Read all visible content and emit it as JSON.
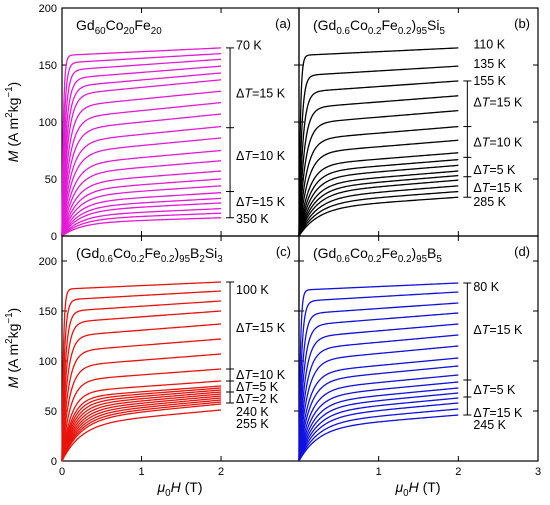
{
  "chart_data": [
    {
      "type": "line",
      "panel": "(a)",
      "title_parts": [
        [
          "Gd",
          "n"
        ],
        [
          "60",
          "sub"
        ],
        [
          "Co",
          "n"
        ],
        [
          "20",
          "sub"
        ],
        [
          "Fe",
          "n"
        ],
        [
          "20",
          "sub"
        ]
      ],
      "xlim": [
        0,
        3
      ],
      "ylim": [
        0,
        200
      ],
      "x_ticks": [
        0,
        1,
        2,
        3
      ],
      "y_ticks": [
        0,
        50,
        100,
        150,
        200
      ],
      "x_tick_labels": [],
      "y_tick_labels": [
        "0",
        "50",
        "100",
        "150",
        "200"
      ],
      "color": "#e31ad6",
      "curve_field_max": 2,
      "series_m_at_2T": [
        165,
        160,
        155,
        149,
        143,
        137,
        127,
        117,
        107,
        96,
        86,
        75,
        66,
        57,
        50,
        44,
        38,
        33,
        29,
        24,
        20,
        16
      ],
      "annotations": [
        "70 K",
        "ΔT=15 K",
        "ΔT=10 K",
        "ΔT=15 K",
        "350 K"
      ],
      "bracket": {
        "top": 165,
        "bottom": 16,
        "ticks": [
          95,
          39
        ]
      },
      "annotation_y": [
        167,
        125,
        70,
        30,
        15
      ]
    },
    {
      "type": "line",
      "panel": "(b)",
      "title_parts": [
        [
          "(Gd",
          "n"
        ],
        [
          "0.6",
          "sub"
        ],
        [
          "Co",
          "n"
        ],
        [
          "0.2",
          "sub"
        ],
        [
          "Fe",
          "n"
        ],
        [
          "0.2",
          "sub"
        ],
        [
          ")",
          "n"
        ],
        [
          "95",
          "sub"
        ],
        [
          "Si",
          "n"
        ],
        [
          "5",
          "sub"
        ]
      ],
      "xlim": [
        0,
        3
      ],
      "ylim": [
        0,
        200
      ],
      "x_ticks": [
        0,
        1,
        2,
        3
      ],
      "y_ticks": [
        0,
        50,
        100,
        150,
        200
      ],
      "x_tick_labels": [],
      "y_tick_labels": [],
      "color": "#000000",
      "curve_field_max": 2,
      "series_m_at_2T": [
        165,
        149,
        136,
        123,
        110,
        96,
        84,
        73,
        67,
        62,
        57,
        53,
        49,
        44,
        39,
        34
      ],
      "annotations": [
        "110 K",
        "135 K",
        "155 K",
        "ΔT=15 K",
        "ΔT=10 K",
        "ΔT=5 K",
        "ΔT=15 K",
        "285 K"
      ],
      "bracket": {
        "top": 136,
        "bottom": 34,
        "ticks": [
          96,
          69,
          52
        ]
      },
      "annotation_y": [
        168,
        151,
        136,
        117,
        82,
        58,
        42,
        30
      ]
    },
    {
      "type": "line",
      "panel": "(c)",
      "title_parts": [
        [
          "(Gd",
          "n"
        ],
        [
          "0.6",
          "sub"
        ],
        [
          "Co",
          "n"
        ],
        [
          "0.2",
          "sub"
        ],
        [
          "Fe",
          "n"
        ],
        [
          "0.2",
          "sub"
        ],
        [
          ")",
          "n"
        ],
        [
          "95",
          "sub"
        ],
        [
          "B",
          "n"
        ],
        [
          "2",
          "sub"
        ],
        [
          "Si",
          "n"
        ],
        [
          "3",
          "sub"
        ]
      ],
      "xlim": [
        0,
        3
      ],
      "ylim": [
        0,
        225
      ],
      "x_ticks": [
        0,
        1,
        2,
        3
      ],
      "y_ticks": [
        0,
        50,
        100,
        150,
        200
      ],
      "x_tick_labels": [
        "0",
        "1",
        "2",
        ""
      ],
      "y_tick_labels": [
        "0",
        "50",
        "100",
        "150",
        "200"
      ],
      "color": "#e8140c",
      "curve_field_max": 2,
      "series_m_at_2T": [
        179,
        170,
        160,
        150,
        137,
        122,
        107,
        92,
        80,
        75,
        73,
        71,
        69,
        67,
        65,
        63,
        61,
        59,
        57,
        51
      ],
      "annotations": [
        "100 K",
        "ΔT=15 K",
        "ΔT=10 K",
        "ΔT=5 K",
        "ΔT=2 K",
        "240 K",
        "255 K"
      ],
      "bracket": {
        "top": 179,
        "bottom": 58,
        "ticks": [
          92,
          80,
          69
        ]
      },
      "annotation_y": [
        171,
        133,
        86,
        74,
        62,
        49,
        37
      ]
    },
    {
      "type": "line",
      "panel": "(d)",
      "title_parts": [
        [
          "(Gd",
          "n"
        ],
        [
          "0.6",
          "sub"
        ],
        [
          "Co",
          "n"
        ],
        [
          "0.2",
          "sub"
        ],
        [
          "Fe",
          "n"
        ],
        [
          "0.2",
          "sub"
        ],
        [
          ")",
          "n"
        ],
        [
          "95",
          "sub"
        ],
        [
          "B",
          "n"
        ],
        [
          "5",
          "sub"
        ]
      ],
      "xlim": [
        0,
        3
      ],
      "ylim": [
        0,
        225
      ],
      "x_ticks": [
        0,
        1,
        2,
        3
      ],
      "y_ticks": [
        0,
        50,
        100,
        150,
        200
      ],
      "x_tick_labels": [
        "",
        "1",
        "2",
        "3"
      ],
      "y_tick_labels": [],
      "color": "#1010e0",
      "curve_field_max": 2,
      "series_m_at_2T": [
        178,
        169,
        158,
        148,
        137,
        126,
        115,
        103,
        95,
        86,
        79,
        73,
        68,
        63,
        58,
        52,
        46
      ],
      "annotations": [
        "80 K",
        "ΔT=15 K",
        "ΔT=5 K",
        "ΔT=15 K",
        "245 K"
      ],
      "bracket": {
        "top": 178,
        "bottom": 46,
        "ticks": [
          81,
          64
        ]
      },
      "annotation_y": [
        174,
        131,
        71,
        48,
        36
      ]
    }
  ],
  "axes": {
    "ylabel_parts": [
      [
        "M",
        "i"
      ],
      [
        " (A m",
        "n"
      ],
      [
        "2",
        "sup"
      ],
      [
        "kg",
        "n"
      ],
      [
        "−1",
        "sup"
      ],
      [
        ")",
        "n"
      ]
    ],
    "xlabel_parts": [
      [
        "μ",
        "i"
      ],
      [
        "0",
        "sub"
      ],
      [
        "H",
        "i"
      ],
      [
        " (T)",
        "n"
      ]
    ]
  }
}
